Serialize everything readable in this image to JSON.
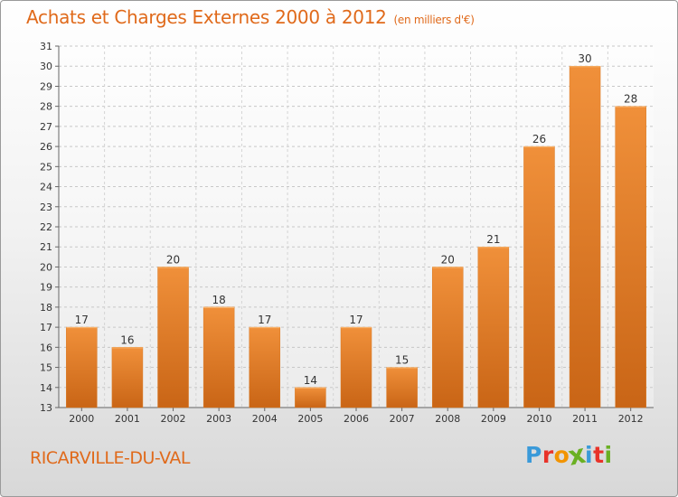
{
  "chart_data": {
    "type": "bar",
    "title": "Achats et Charges Externes 2000 à 2012",
    "subtitle": "(en milliers d'€)",
    "categories": [
      "2000",
      "2001",
      "2002",
      "2003",
      "2004",
      "2005",
      "2006",
      "2007",
      "2008",
      "2009",
      "2010",
      "2011",
      "2012"
    ],
    "values": [
      17,
      16,
      20,
      18,
      17,
      14,
      17,
      15,
      20,
      21,
      26,
      30,
      28
    ],
    "ylim": [
      13,
      31
    ],
    "yticks": [
      13,
      14,
      15,
      16,
      17,
      18,
      19,
      20,
      21,
      22,
      23,
      24,
      25,
      26,
      27,
      28,
      29,
      30,
      31
    ],
    "grid": true,
    "xlabel": "",
    "ylabel": "",
    "bar_color": "#f0903a",
    "bar_color_dark": "#c96516"
  },
  "footer": {
    "town": "RICARVILLE-DU-VAL",
    "logo_letters": [
      "P",
      "r",
      "o",
      "x",
      "i",
      "t",
      "i"
    ],
    "logo_colors": [
      "#3a9ad9",
      "#e8332a",
      "#f29400",
      "#6ab023",
      "#3a9ad9",
      "#e8332a",
      "#6ab023"
    ]
  },
  "theme": {
    "accent": "#e06a1b"
  }
}
